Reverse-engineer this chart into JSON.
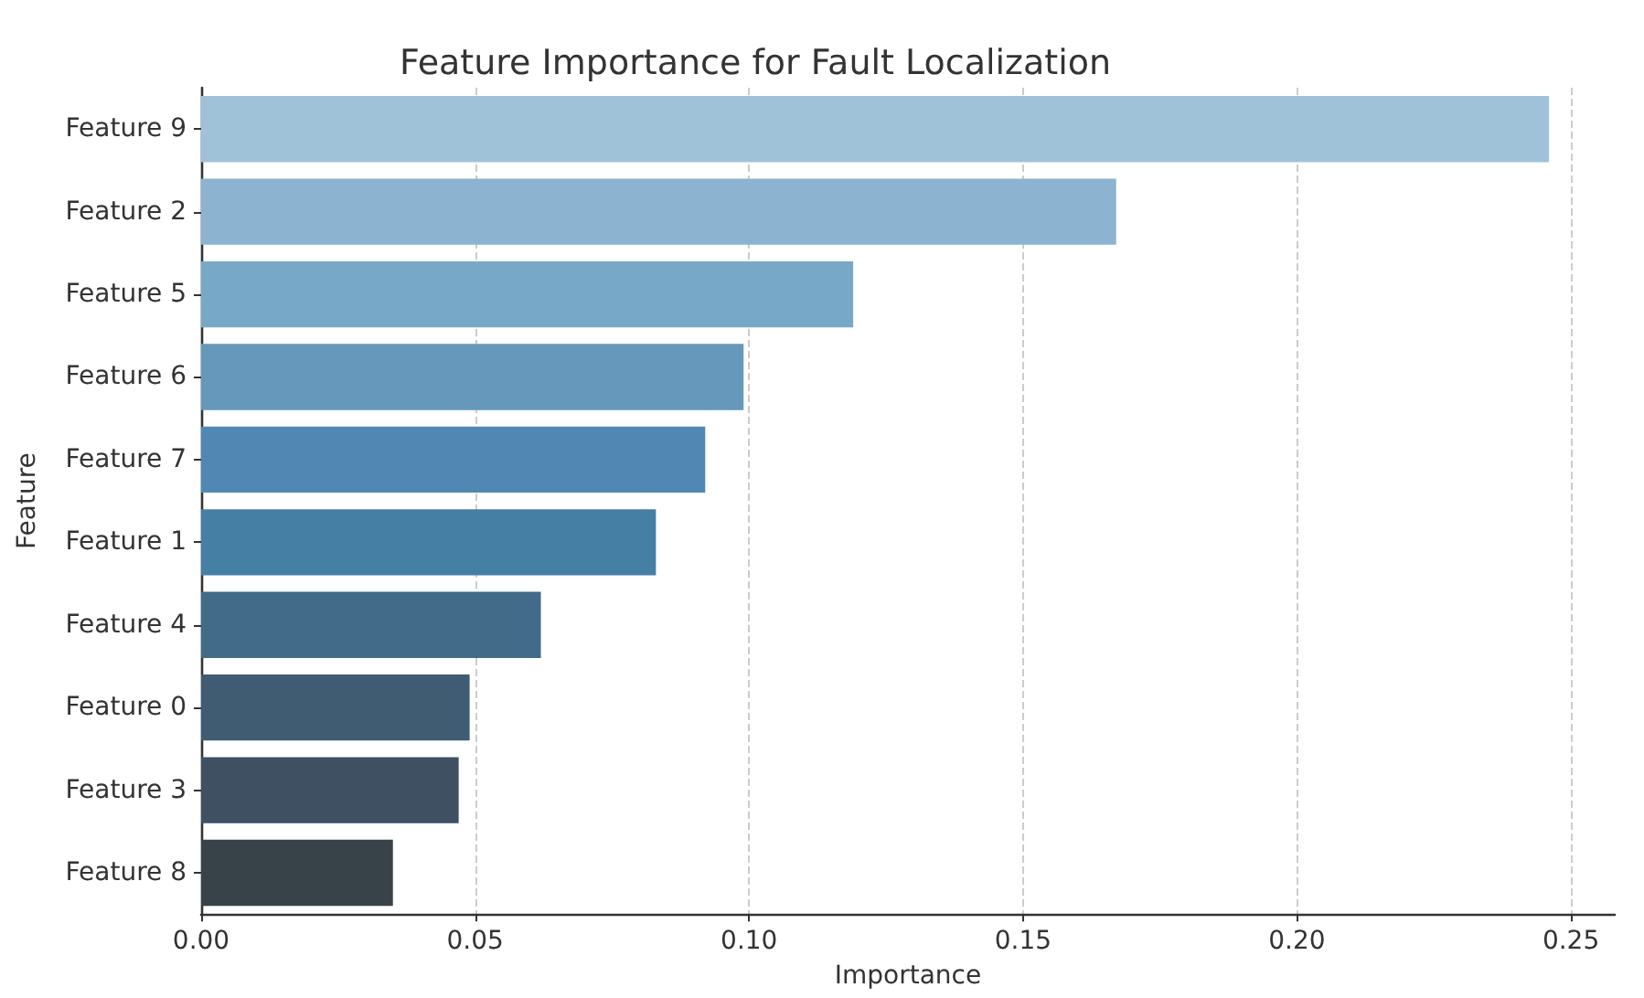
{
  "chart_data": {
    "type": "bar",
    "orientation": "horizontal",
    "title": "Feature Importance for Fault Localization",
    "xlabel": "Importance",
    "ylabel": "Feature",
    "categories": [
      "Feature 9",
      "Feature 2",
      "Feature 5",
      "Feature 6",
      "Feature 7",
      "Feature 1",
      "Feature 4",
      "Feature 0",
      "Feature 3",
      "Feature 8"
    ],
    "values": [
      0.246,
      0.167,
      0.119,
      0.099,
      0.092,
      0.083,
      0.062,
      0.049,
      0.047,
      0.035
    ],
    "colors": [
      "#a0c2d8",
      "#8cb3cf",
      "#78a8c7",
      "#6698bc",
      "#5088b3",
      "#457fa4",
      "#416b88",
      "#3f5c72",
      "#3e5062",
      "#384349"
    ],
    "xlim": [
      0,
      0.258
    ],
    "xticks": [
      {
        "value": 0,
        "label": "0.00"
      },
      {
        "value": 0.05,
        "label": "0.05"
      },
      {
        "value": 0.1,
        "label": "0.10"
      },
      {
        "value": 0.15,
        "label": "0.15"
      },
      {
        "value": 0.2,
        "label": "0.20"
      },
      {
        "value": 0.25,
        "label": "0.25"
      }
    ],
    "grid": "x"
  }
}
